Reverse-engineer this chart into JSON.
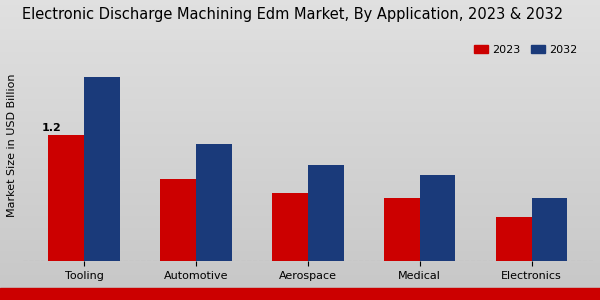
{
  "title": "Electronic Discharge Machining Edm Market, By Application, 2023 & 2032",
  "categories": [
    "Tooling",
    "Automotive",
    "Aerospace",
    "Medical",
    "Electronics"
  ],
  "values_2023": [
    1.2,
    0.78,
    0.65,
    0.6,
    0.42
  ],
  "values_2032": [
    1.75,
    1.12,
    0.92,
    0.82,
    0.6
  ],
  "color_2023": "#cc0000",
  "color_2032": "#1a3a7a",
  "ylabel": "Market Size in USD Billion",
  "annotation_text": "1.2",
  "annotation_bar_index": 0,
  "background_top": "#d8d8d8",
  "background_bottom": "#c0c0c0",
  "bar_width": 0.32,
  "legend_labels": [
    "2023",
    "2032"
  ],
  "ylim": [
    0,
    2.2
  ],
  "title_fontsize": 10.5,
  "axis_label_fontsize": 8,
  "tick_fontsize": 8,
  "bottom_bar_color": "#cc0000",
  "bottom_bar_height": 0.04
}
